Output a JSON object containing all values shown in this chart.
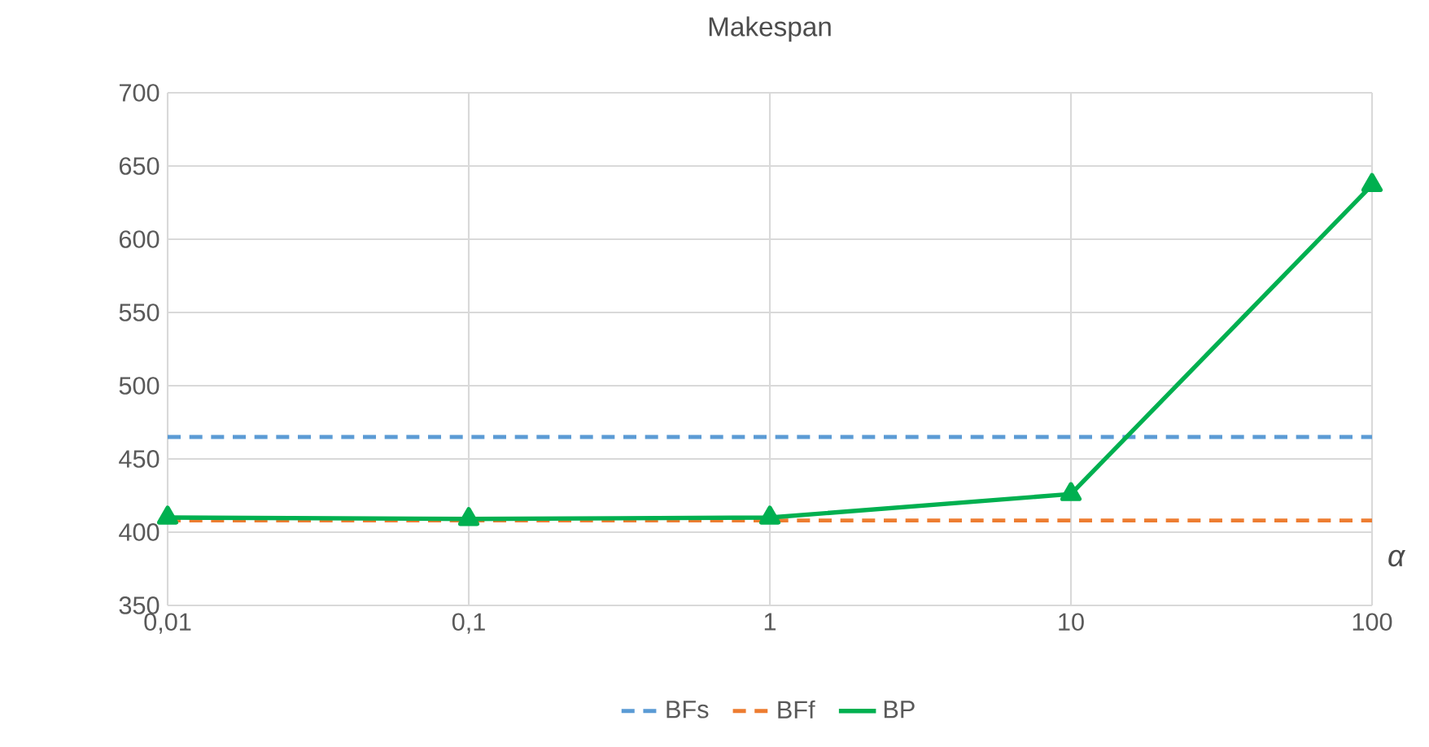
{
  "chart_data": {
    "type": "line",
    "title": "Makespan",
    "xlabel": "α",
    "categories": [
      "0,01",
      "0,1",
      "1",
      "10",
      "100"
    ],
    "series": [
      {
        "name": "BFs",
        "color": "#5b9bd5",
        "line_style": "dashed",
        "marker": "none",
        "values": [
          465,
          465,
          465,
          465,
          465
        ]
      },
      {
        "name": "BFf",
        "color": "#ed7d31",
        "line_style": "dashed",
        "marker": "none",
        "values": [
          408,
          408,
          408,
          408,
          408
        ]
      },
      {
        "name": "BP",
        "color": "#00b050",
        "line_style": "solid",
        "marker": "triangle",
        "values": [
          410,
          409,
          410,
          426,
          637
        ]
      }
    ],
    "ylim": [
      350,
      700
    ],
    "yticks": [
      350,
      400,
      450,
      500,
      550,
      600,
      650,
      700
    ],
    "grid": true,
    "legend": "bottom"
  }
}
